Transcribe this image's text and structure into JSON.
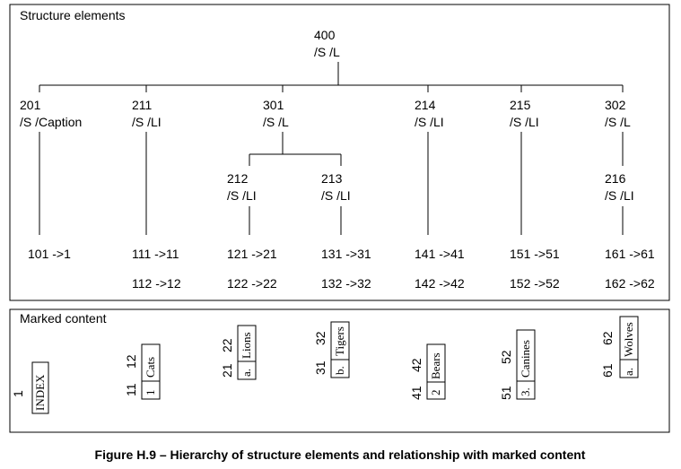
{
  "structure_panel": {
    "title": "Structure elements"
  },
  "root": {
    "id": "400",
    "tags": "/S /L"
  },
  "level1": [
    {
      "id": "201",
      "tags": "/S /Caption"
    },
    {
      "id": "211",
      "tags": "/S /LI"
    },
    {
      "id": "301",
      "tags": "/S /L"
    },
    {
      "id": "214",
      "tags": "/S /LI"
    },
    {
      "id": "215",
      "tags": "/S /LI"
    },
    {
      "id": "302",
      "tags": "/S /L"
    }
  ],
  "level2": [
    {
      "id": "212",
      "tags": "/S /LI"
    },
    {
      "id": "213",
      "tags": "/S /LI"
    },
    {
      "id": "216",
      "tags": "/S /LI"
    }
  ],
  "mappings_row1": [
    "101 ->1",
    "111 ->11",
    "121 ->21",
    "131 ->31",
    "141 ->41",
    "151 ->51",
    "161 ->61"
  ],
  "mappings_row2": [
    "112 ->12",
    "122 ->22",
    "132 ->32",
    "142 ->42",
    "152 ->52",
    "162 ->62"
  ],
  "marked_panel": {
    "title": "Marked content"
  },
  "marked": [
    {
      "single": "1",
      "text": "INDEX"
    },
    {
      "mcid_a": "11",
      "mcid_b": "12",
      "label": "1",
      "body": "Cats"
    },
    {
      "mcid_a": "21",
      "mcid_b": "22",
      "label": "a.",
      "body": "Lions"
    },
    {
      "mcid_a": "31",
      "mcid_b": "32",
      "label": "b.",
      "body": "Tigers"
    },
    {
      "mcid_a": "41",
      "mcid_b": "42",
      "label": "2",
      "body": "Bears"
    },
    {
      "mcid_a": "51",
      "mcid_b": "52",
      "label": "3.",
      "body": "Canines"
    },
    {
      "mcid_a": "61",
      "mcid_b": "62",
      "label": "a.",
      "body": "Wolves"
    }
  ],
  "caption": "Figure H.9 –  Hierarchy of structure elements and relationship with marked content"
}
